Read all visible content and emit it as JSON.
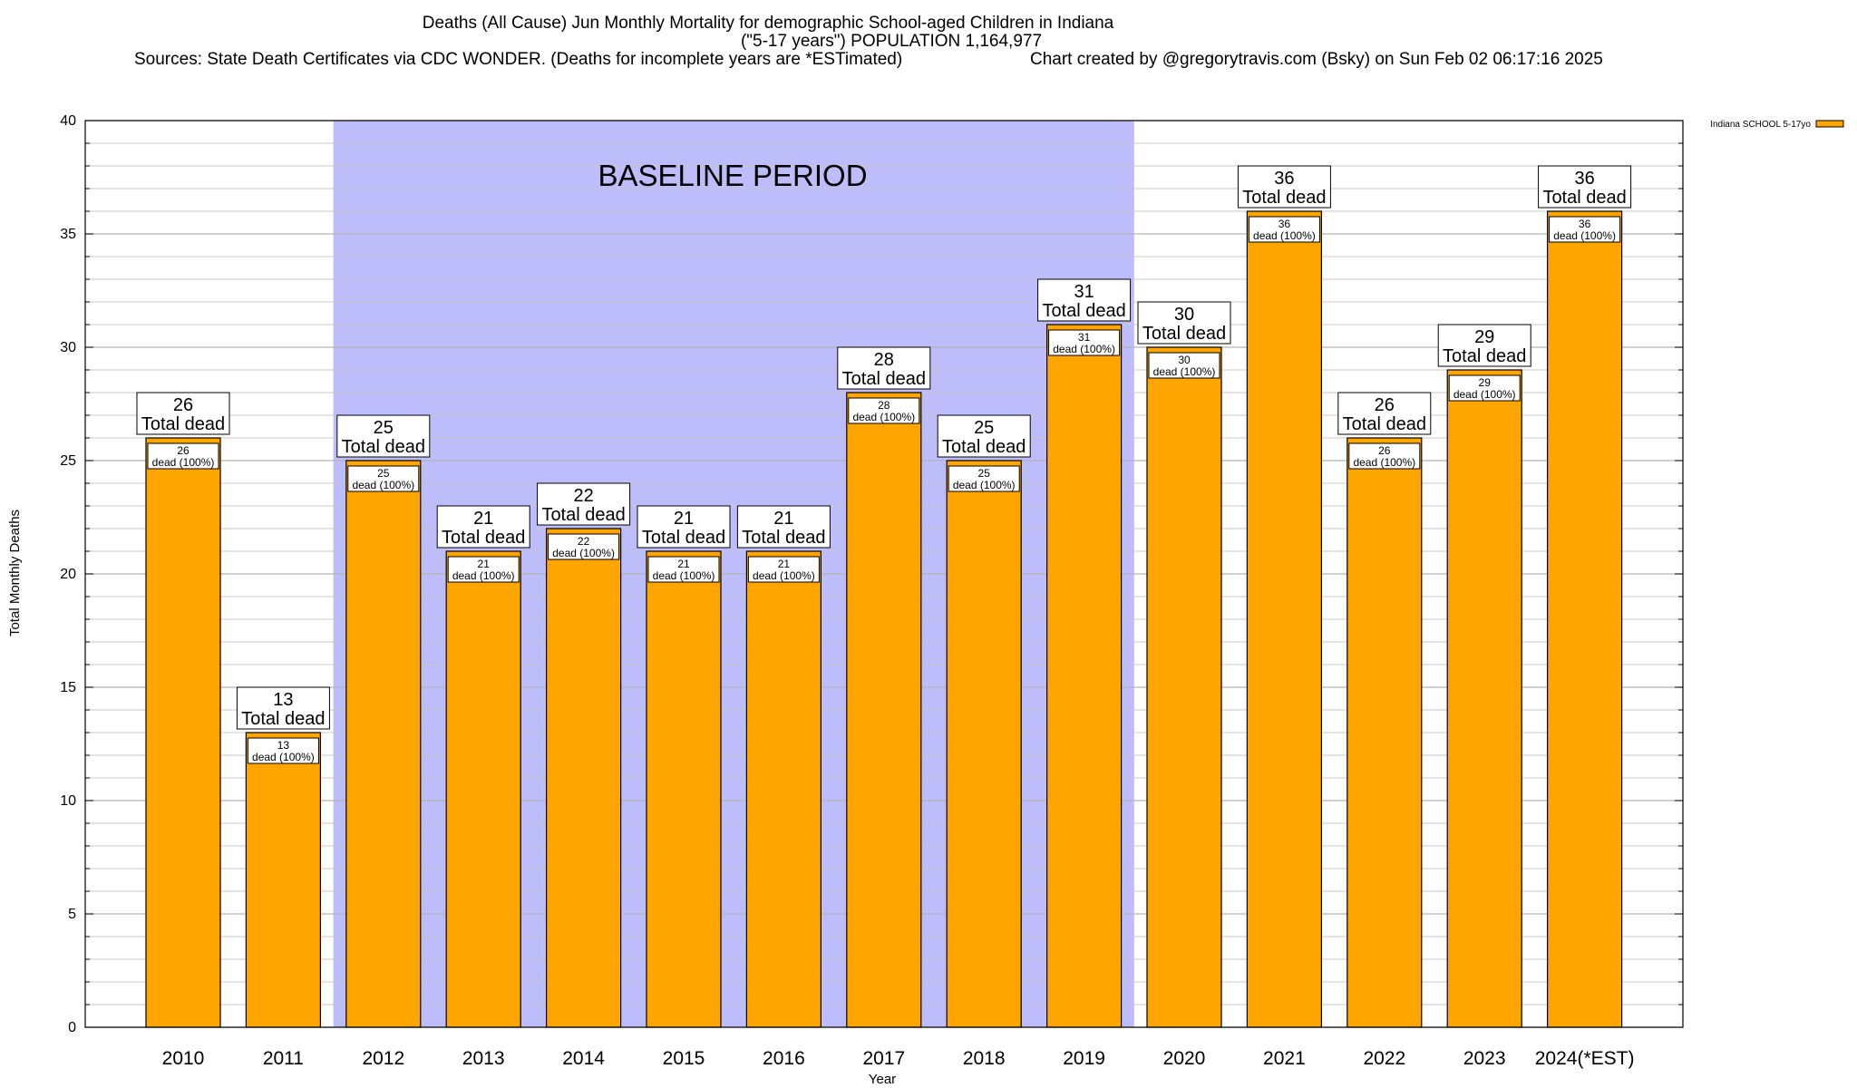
{
  "title": {
    "line1": "Deaths (All Cause) Jun Monthly Mortality for demographic School-aged Children in Indiana",
    "line2": "(\"5-17 years\") POPULATION 1,164,977",
    "line3_left": "Sources: State Death Certificates via CDC WONDER. (Deaths for incomplete years are *ESTimated)",
    "line3_right": "Chart created by @gregorytravis.com (Bsky) on Sun Feb 02 06:17:16 2025"
  },
  "colors": {
    "bar": "#FFA500",
    "baseline_band": "#BDBDFB",
    "grid": "#c8c8c8"
  },
  "chart_data": {
    "type": "bar",
    "categories": [
      "2010",
      "2011",
      "2012",
      "2013",
      "2014",
      "2015",
      "2016",
      "2017",
      "2018",
      "2019",
      "2020",
      "2021",
      "2022",
      "2023",
      "2024(*EST)"
    ],
    "series": [
      {
        "name": "Indiana SCHOOL 5-17yo",
        "values": [
          26,
          13,
          25,
          21,
          22,
          21,
          21,
          28,
          25,
          31,
          30,
          36,
          26,
          29,
          36
        ]
      }
    ],
    "big_label_text": "Total dead",
    "small_label_text": "dead (100%)",
    "xlabel": "Year",
    "ylabel": "Total Monthly Deaths",
    "ylim": [
      0,
      40
    ],
    "y_ticks": [
      0,
      5,
      10,
      15,
      20,
      25,
      30,
      35,
      40
    ],
    "y_minor_step": 1,
    "grid": true,
    "legend_position": "top-right",
    "baseline_band": {
      "label": "BASELINE PERIOD",
      "from_category": "2012",
      "to_category": "2019"
    }
  }
}
